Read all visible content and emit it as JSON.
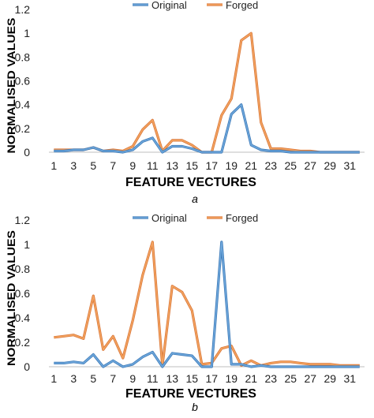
{
  "colors": {
    "original": "#6fa8dc",
    "forged": "#f4a460",
    "axis": "#bfbfbf",
    "text": "#000000",
    "tick": "#222222"
  },
  "chart_data": [
    {
      "type": "line",
      "caption": "a",
      "xlabel": "FEATURE VECTURES",
      "ylabel": "NORMALISED VALUES",
      "ylim": [
        0,
        1.2
      ],
      "yticks": [
        "0",
        "0.2",
        "0.4",
        "0.6",
        "0.8",
        "1",
        "1.2"
      ],
      "xtick_labels": [
        "1",
        "3",
        "5",
        "7",
        "9",
        "11",
        "13",
        "15",
        "17",
        "19",
        "21",
        "23",
        "25",
        "27",
        "29",
        "31"
      ],
      "grid": false,
      "legend_position": "top",
      "x": [
        1,
        2,
        3,
        4,
        5,
        6,
        7,
        8,
        9,
        10,
        11,
        12,
        13,
        14,
        15,
        16,
        17,
        18,
        19,
        20,
        21,
        22,
        23,
        24,
        25,
        26,
        27,
        28,
        29,
        30,
        31,
        32
      ],
      "series": [
        {
          "name": "Original",
          "values": [
            0.01,
            0.01,
            0.02,
            0.02,
            0.04,
            0.01,
            0.01,
            0.0,
            0.02,
            0.09,
            0.12,
            0.0,
            0.05,
            0.05,
            0.03,
            0.0,
            0.0,
            0.0,
            0.32,
            0.4,
            0.06,
            0.02,
            0.01,
            0.01,
            0.0,
            0.0,
            0.0,
            0.0,
            0.0,
            0.0,
            0.0,
            0.0
          ]
        },
        {
          "name": "Forged",
          "values": [
            0.02,
            0.02,
            0.02,
            0.02,
            0.04,
            0.01,
            0.02,
            0.01,
            0.05,
            0.19,
            0.27,
            0.01,
            0.1,
            0.1,
            0.06,
            0.0,
            0.0,
            0.31,
            0.45,
            0.94,
            1.0,
            0.25,
            0.03,
            0.03,
            0.02,
            0.01,
            0.01,
            0.0,
            0.0,
            0.0,
            0.0,
            0.0
          ]
        }
      ]
    },
    {
      "type": "line",
      "caption": "b",
      "xlabel": "FEATURE VECTURES",
      "ylabel": "NORMALISED VALUES",
      "ylim": [
        0,
        1.2
      ],
      "yticks": [
        "0",
        "0.2",
        "0.4",
        "0.6",
        "0.8",
        "1",
        "1.2"
      ],
      "xtick_labels": [
        "1",
        "3",
        "5",
        "7",
        "9",
        "11",
        "13",
        "15",
        "17",
        "19",
        "21",
        "23",
        "25",
        "27",
        "29",
        "31"
      ],
      "grid": false,
      "legend_position": "top",
      "x": [
        1,
        2,
        3,
        4,
        5,
        6,
        7,
        8,
        9,
        10,
        11,
        12,
        13,
        14,
        15,
        16,
        17,
        18,
        19,
        20,
        21,
        22,
        23,
        24,
        25,
        26,
        27,
        28,
        29,
        30,
        31,
        32
      ],
      "series": [
        {
          "name": "Original",
          "values": [
            0.03,
            0.03,
            0.04,
            0.03,
            0.1,
            0.0,
            0.05,
            0.0,
            0.02,
            0.08,
            0.12,
            0.0,
            0.11,
            0.1,
            0.09,
            0.0,
            0.0,
            1.02,
            0.02,
            0.02,
            0.0,
            0.01,
            0.0,
            0.0,
            0.0,
            0.0,
            0.0,
            0.0,
            0.0,
            0.0,
            0.0,
            0.0
          ]
        },
        {
          "name": "Forged",
          "values": [
            0.24,
            0.25,
            0.26,
            0.23,
            0.58,
            0.14,
            0.25,
            0.07,
            0.38,
            0.75,
            1.02,
            0.01,
            0.66,
            0.61,
            0.46,
            0.02,
            0.03,
            0.15,
            0.17,
            0.01,
            0.05,
            0.01,
            0.03,
            0.04,
            0.04,
            0.03,
            0.02,
            0.02,
            0.02,
            0.01,
            0.01,
            0.01
          ]
        }
      ]
    }
  ]
}
